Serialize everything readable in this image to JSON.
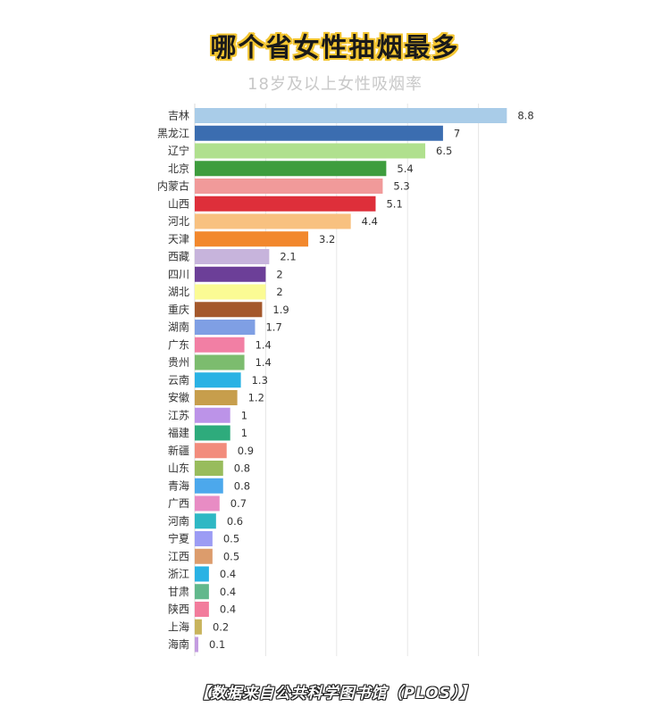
{
  "title": "哪个省女性抽烟最多",
  "subtitle": "18岁及以上女性吸烟率",
  "source": "【数据来自公共科学图书馆（PLOS）】",
  "chart_data": {
    "type": "bar",
    "orientation": "horizontal",
    "categories": [
      "吉林",
      "黑龙江",
      "辽宁",
      "北京",
      "内蒙古",
      "山西",
      "河北",
      "天津",
      "西藏",
      "四川",
      "湖北",
      "重庆",
      "湖南",
      "广东",
      "贵州",
      "云南",
      "安徽",
      "江苏",
      "福建",
      "新疆",
      "山东",
      "青海",
      "广西",
      "河南",
      "宁夏",
      "江西",
      "浙江",
      "甘肃",
      "陕西",
      "上海",
      "海南"
    ],
    "values": [
      8.8,
      7,
      6.5,
      5.4,
      5.3,
      5.1,
      4.4,
      3.2,
      2.1,
      2,
      2,
      1.9,
      1.7,
      1.4,
      1.4,
      1.3,
      1.2,
      1,
      1,
      0.9,
      0.8,
      0.8,
      0.7,
      0.6,
      0.5,
      0.5,
      0.4,
      0.4,
      0.4,
      0.2,
      0.1
    ],
    "value_labels": [
      "8.8",
      "7",
      "6.5",
      "5.4",
      "5.3",
      "5.1",
      "4.4",
      "3.2",
      "2.1",
      "2",
      "2",
      "1.9",
      "1.7",
      "1.4",
      "1.4",
      "1.3",
      "1.2",
      "1",
      "1",
      "0.9",
      "0.8",
      "0.8",
      "0.7",
      "0.6",
      "0.5",
      "0.5",
      "0.4",
      "0.4",
      "0.4",
      "0.2",
      "0.1"
    ],
    "colors": [
      "#a9cce8",
      "#3b6db0",
      "#b0e08e",
      "#3e9d3e",
      "#f19a9a",
      "#de2f3a",
      "#f8c180",
      "#f2882d",
      "#c7b4dc",
      "#6c3f98",
      "#fbfb94",
      "#a4582c",
      "#7f9fe4",
      "#f27fa4",
      "#7cbc6e",
      "#2ab2e4",
      "#c79e4c",
      "#bc93e8",
      "#2eab7c",
      "#f28c7c",
      "#98bc5c",
      "#4ca8ec",
      "#e88cc4",
      "#2eb8c4",
      "#9c9cf4",
      "#dc9c6c",
      "#2ab2e4",
      "#62b88c",
      "#f27c9c",
      "#c8b45c",
      "#c39ce0"
    ],
    "xlim": [
      0,
      9
    ],
    "grid": true,
    "gridline_values": [
      2,
      4,
      6,
      8
    ]
  }
}
